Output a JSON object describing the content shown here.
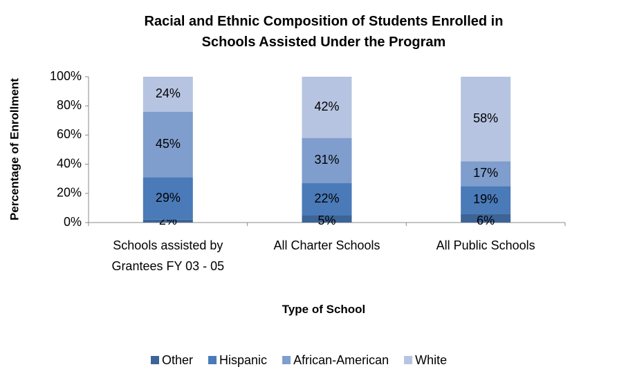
{
  "chart_data": {
    "type": "stacked_bar",
    "title": "Racial and Ethnic Composition of Students Enrolled in Schools Assisted Under the Program",
    "x_label": "Type of School",
    "y_label": "Percentage of Enrollment",
    "categories": [
      "Schools assisted by Grantees FY 03 - 05",
      "All Charter Schools",
      "All Public Schools"
    ],
    "series": [
      {
        "name": "Other",
        "color": "#3d6497",
        "values": [
          2,
          5,
          6
        ],
        "value_labels": [
          "2%",
          "5%",
          "6%"
        ]
      },
      {
        "name": "Hispanic",
        "color": "#4a7ab8",
        "values": [
          29,
          22,
          19
        ],
        "value_labels": [
          "29%",
          "22%",
          "19%"
        ]
      },
      {
        "name": "African-American",
        "color": "#7f9dcd",
        "values": [
          45,
          31,
          17
        ],
        "value_labels": [
          "45%",
          "31%",
          "17%"
        ]
      },
      {
        "name": "White",
        "color": "#b6c4e1",
        "values": [
          24,
          42,
          58
        ],
        "value_labels": [
          "24%",
          "42%",
          "58%"
        ]
      }
    ],
    "ylim": [
      0,
      100
    ],
    "yticks": [
      {
        "value": 0,
        "label": "0%"
      },
      {
        "value": 20,
        "label": "20%"
      },
      {
        "value": 40,
        "label": "40%"
      },
      {
        "value": 60,
        "label": "60%"
      },
      {
        "value": 80,
        "label": "80%"
      },
      {
        "value": 100,
        "label": "100%"
      }
    ],
    "grid": false,
    "legend": "bottom"
  }
}
